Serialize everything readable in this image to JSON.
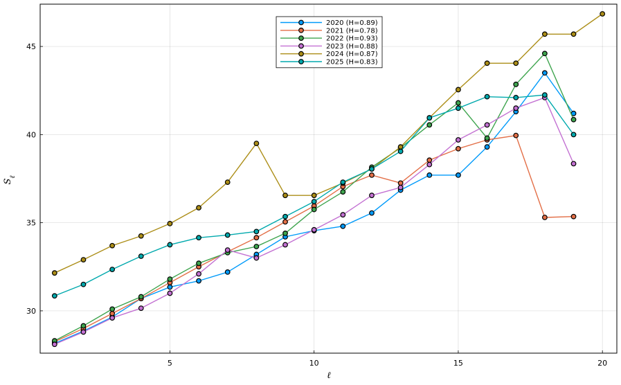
{
  "chart_data": {
    "type": "line",
    "title": "",
    "xlabel": "ℓ",
    "ylabel": "S_ℓ",
    "xlim": [
      0.5,
      20.5
    ],
    "ylim": [
      27.6,
      47.4
    ],
    "xticks": [
      5,
      10,
      15,
      20
    ],
    "yticks": [
      30,
      35,
      40,
      45
    ],
    "grid": true,
    "legend_position": "top-center",
    "series": [
      {
        "name": "2020 (H=0.89)",
        "color": "#009AFA",
        "x": [
          1,
          2,
          3,
          4,
          5,
          6,
          7,
          8,
          9,
          10,
          11,
          12,
          13,
          14,
          15,
          16,
          17,
          18,
          19
        ],
        "y": [
          28.15,
          28.85,
          29.65,
          30.7,
          31.35,
          31.7,
          32.2,
          33.2,
          34.2,
          34.55,
          34.8,
          35.55,
          36.85,
          37.7,
          37.7,
          39.3,
          41.3,
          43.5,
          41.2
        ]
      },
      {
        "name": "2021 (H=0.78)",
        "color": "#E36F47",
        "x": [
          1,
          2,
          3,
          4,
          5,
          6,
          7,
          8,
          9,
          10,
          11,
          12,
          13,
          14,
          15,
          16,
          17,
          18,
          19
        ],
        "y": [
          28.25,
          29.0,
          29.85,
          30.7,
          31.6,
          32.5,
          33.35,
          34.15,
          35.05,
          35.95,
          37.05,
          37.7,
          37.25,
          38.55,
          39.2,
          39.7,
          39.95,
          35.3,
          35.35
        ]
      },
      {
        "name": "2022 (H=0.93)",
        "color": "#3EA44E",
        "x": [
          1,
          2,
          3,
          4,
          5,
          6,
          7,
          8,
          9,
          10,
          11,
          12,
          13,
          14,
          15,
          16,
          17,
          18,
          19
        ],
        "y": [
          28.3,
          29.15,
          30.1,
          30.8,
          31.8,
          32.7,
          33.3,
          33.65,
          34.4,
          35.75,
          36.75,
          38.15,
          39.25,
          40.55,
          41.8,
          39.8,
          42.85,
          44.6,
          40.85
        ]
      },
      {
        "name": "2023 (H=0.88)",
        "color": "#C371D2",
        "x": [
          1,
          2,
          3,
          4,
          5,
          6,
          7,
          8,
          9,
          10,
          11,
          12,
          13,
          14,
          15,
          16,
          17,
          18,
          19
        ],
        "y": [
          28.1,
          28.8,
          29.6,
          30.15,
          31.0,
          32.1,
          33.45,
          33.0,
          33.75,
          34.6,
          35.45,
          36.55,
          37.0,
          38.3,
          39.7,
          40.55,
          41.5,
          42.1,
          38.35
        ]
      },
      {
        "name": "2024 (H=0.87)",
        "color": "#AC8E18",
        "x": [
          1,
          2,
          3,
          4,
          5,
          6,
          7,
          8,
          9,
          10,
          11,
          12,
          13,
          14,
          15,
          16,
          17,
          18,
          19,
          20
        ],
        "y": [
          32.15,
          32.9,
          33.7,
          34.25,
          34.95,
          35.85,
          37.3,
          39.5,
          36.55,
          36.55,
          37.25,
          38.05,
          39.3,
          40.95,
          42.55,
          44.05,
          44.05,
          45.7,
          45.7,
          46.85
        ]
      },
      {
        "name": "2025 (H=0.83)",
        "color": "#00A9AD",
        "x": [
          1,
          2,
          3,
          4,
          5,
          6,
          7,
          8,
          9,
          10,
          11,
          12,
          13,
          14,
          15,
          16,
          17,
          18,
          19
        ],
        "y": [
          30.85,
          31.5,
          32.35,
          33.1,
          33.75,
          34.15,
          34.3,
          34.5,
          35.35,
          36.2,
          37.3,
          38.05,
          39.05,
          40.95,
          41.5,
          42.15,
          42.1,
          42.25,
          40.0
        ]
      }
    ]
  }
}
